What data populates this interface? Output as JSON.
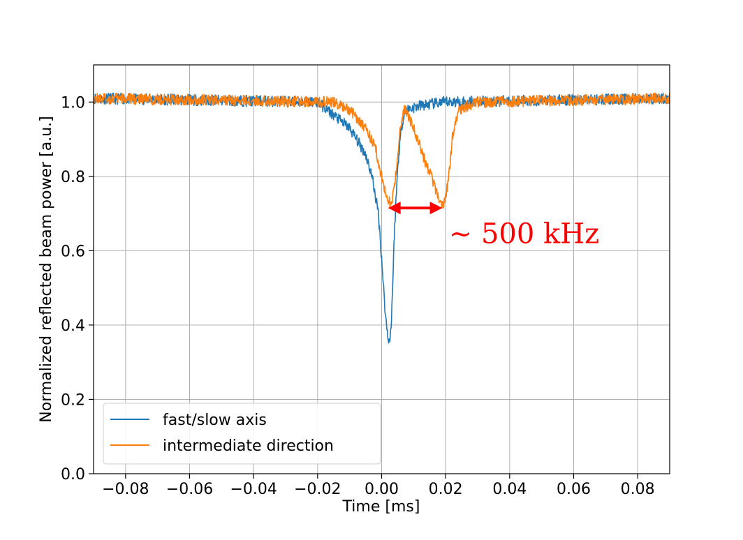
{
  "chart_data": {
    "type": "line",
    "xlabel": "Time [ms]",
    "ylabel": "Normalized reflected beam power [a.u.]",
    "xlim": [
      -0.09,
      0.09
    ],
    "ylim": [
      0.0,
      1.1
    ],
    "xticks": [
      -0.08,
      -0.06,
      -0.04,
      -0.02,
      0.0,
      0.02,
      0.04,
      0.06,
      0.08
    ],
    "xtick_labels": [
      "−0.08",
      "−0.06",
      "−0.04",
      "−0.02",
      "0.00",
      "0.02",
      "0.04",
      "0.06",
      "0.08"
    ],
    "yticks": [
      0.0,
      0.2,
      0.4,
      0.6,
      0.8,
      1.0
    ],
    "ytick_labels": [
      "0.0",
      "0.2",
      "0.4",
      "0.6",
      "0.8",
      "1.0"
    ],
    "grid": true,
    "legend_position": "lower-left",
    "series": [
      {
        "name": "fast/slow axis",
        "color": "#1f77b4",
        "x": [
          -0.09,
          -0.02,
          -0.01,
          -0.005,
          -0.003,
          -0.001,
          0.0,
          0.001,
          0.0015,
          0.002,
          0.0025,
          0.003,
          0.0035,
          0.004,
          0.005,
          0.006,
          0.007,
          0.008,
          0.012,
          0.02,
          0.09
        ],
        "y": [
          1.01,
          1.0,
          0.93,
          0.86,
          0.8,
          0.7,
          0.58,
          0.45,
          0.4,
          0.37,
          0.355,
          0.4,
          0.52,
          0.65,
          0.82,
          0.92,
          0.97,
          0.98,
          0.99,
          1.0,
          1.01
        ]
      },
      {
        "name": "intermediate direction",
        "color": "#ff7f0e",
        "x": [
          -0.09,
          -0.015,
          -0.01,
          -0.005,
          -0.002,
          0.0,
          0.001,
          0.002,
          0.003,
          0.004,
          0.005,
          0.006,
          0.007,
          0.008,
          0.01,
          0.012,
          0.014,
          0.016,
          0.017,
          0.018,
          0.019,
          0.02,
          0.021,
          0.022,
          0.024,
          0.03,
          0.09
        ],
        "y": [
          1.01,
          1.0,
          0.98,
          0.93,
          0.88,
          0.8,
          0.76,
          0.73,
          0.73,
          0.77,
          0.85,
          0.94,
          0.98,
          0.97,
          0.93,
          0.88,
          0.83,
          0.79,
          0.76,
          0.74,
          0.72,
          0.74,
          0.8,
          0.9,
          0.98,
          1.0,
          1.01
        ]
      }
    ],
    "annotations": [
      {
        "type": "double-arrow",
        "color": "#ff0000",
        "x_start": 0.002,
        "x_end": 0.019,
        "y": 0.715
      },
      {
        "type": "text",
        "text": "~ 500 kHz",
        "color": "#ff0000",
        "x": 0.021,
        "y": 0.62
      }
    ]
  }
}
